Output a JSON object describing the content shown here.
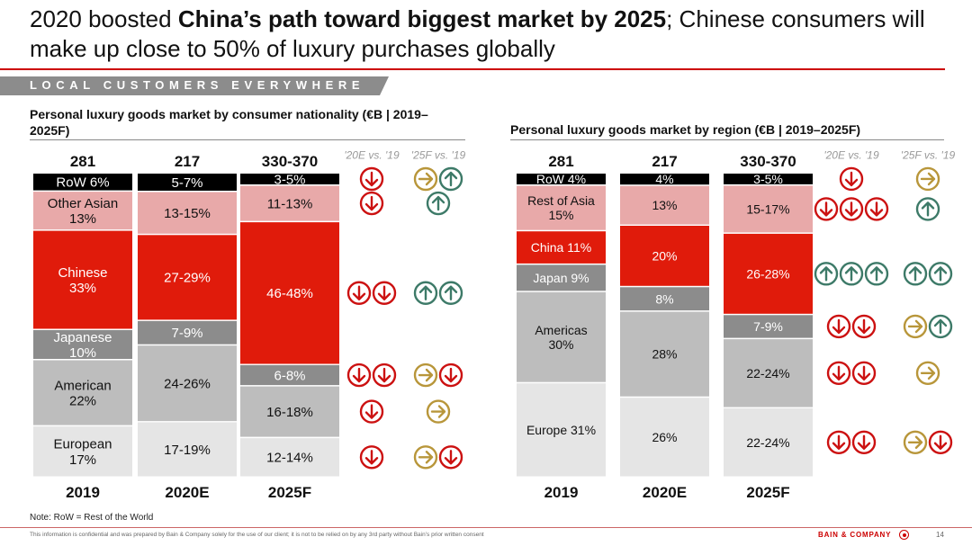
{
  "title": {
    "part1": "2020 boosted ",
    "bold": "China’s path toward biggest market by 2025",
    "part2": "; Chinese consumers will make up close to 50% of luxury purchases globally"
  },
  "banner": "LOCAL CUSTOMERS EVERYWHERE",
  "note": "Note: RoW = Rest of the World",
  "footer": "This information is confidential and was prepared by Bain & Company solely for the use of our client; it is not to be relied on by any 3rd party without Bain’s prior written consent",
  "brand": "BAIN & COMPANY",
  "page_number": "14",
  "colors": {
    "black": "#000000",
    "pink": "#e8a9a9",
    "red": "#e01b0b",
    "darkgrey": "#8c8c8c",
    "grey": "#bdbdbd",
    "lightgrey": "#e5e5e5",
    "down": "#cc1111",
    "right": "#b8963a",
    "up": "#3d7a68",
    "accent_rule": "#cc0000"
  },
  "chart_data": [
    {
      "type": "bar",
      "stacked": true,
      "normalized": true,
      "title": "Personal luxury goods market by consumer nationality (€B | 2019–2025F)",
      "unit": "€B",
      "categories": [
        "2019",
        "2020E",
        "2025F"
      ],
      "totals": [
        "281",
        "217",
        "330-370"
      ],
      "series": [
        {
          "name": "RoW",
          "color": "black",
          "values": [
            6,
            6,
            4
          ],
          "labels": [
            "RoW 6%",
            "5-7%",
            "3-5%"
          ]
        },
        {
          "name": "Other Asian",
          "color": "pink",
          "values": [
            13,
            14,
            12
          ],
          "labels": [
            "Other Asian\n13%",
            "13-15%",
            "11-13%"
          ]
        },
        {
          "name": "Chinese",
          "color": "red",
          "values": [
            33,
            28,
            47
          ],
          "labels": [
            "Chinese\n33%",
            "27-29%",
            "46-48%"
          ]
        },
        {
          "name": "Japanese",
          "color": "darkgrey",
          "values": [
            10,
            8,
            7
          ],
          "labels": [
            "Japanese\n10%",
            "7-9%",
            "6-8%"
          ]
        },
        {
          "name": "American",
          "color": "grey",
          "values": [
            22,
            25,
            17
          ],
          "labels": [
            "American\n22%",
            "24-26%",
            "16-18%"
          ]
        },
        {
          "name": "European",
          "color": "lightgrey",
          "values": [
            17,
            18,
            13
          ],
          "labels": [
            "European\n17%",
            "17-19%",
            "12-14%"
          ]
        }
      ],
      "trend_headers": [
        "'20E vs. '19",
        "'25F vs. '19"
      ],
      "trends": [
        {
          "vs19_20E": [
            "down"
          ],
          "vs19_25F": [
            "right",
            "up"
          ]
        },
        {
          "vs19_20E": [
            "down"
          ],
          "vs19_25F": [
            "up"
          ]
        },
        {
          "vs19_20E": [
            "down",
            "down"
          ],
          "vs19_25F": [
            "up",
            "up"
          ]
        },
        {
          "vs19_20E": [
            "down",
            "down"
          ],
          "vs19_25F": [
            "right",
            "down"
          ]
        },
        {
          "vs19_20E": [
            "down"
          ],
          "vs19_25F": [
            "right"
          ]
        },
        {
          "vs19_20E": [
            "down"
          ],
          "vs19_25F": [
            "right",
            "down"
          ]
        }
      ]
    },
    {
      "type": "bar",
      "stacked": true,
      "normalized": true,
      "title": "Personal luxury goods market by region (€B | 2019–2025F)",
      "unit": "€B",
      "categories": [
        "2019",
        "2020E",
        "2025F"
      ],
      "totals": [
        "281",
        "217",
        "330-370"
      ],
      "series": [
        {
          "name": "RoW",
          "color": "black",
          "values": [
            4,
            4,
            4
          ],
          "labels": [
            "RoW 4%",
            "4%",
            "3-5%"
          ]
        },
        {
          "name": "Rest of Asia",
          "color": "pink",
          "values": [
            15,
            13,
            16
          ],
          "labels": [
            "Rest of Asia\n15%",
            "13%",
            "15-17%"
          ]
        },
        {
          "name": "China",
          "color": "red",
          "values": [
            11,
            20,
            27
          ],
          "labels": [
            "China 11%",
            "20%",
            "26-28%"
          ]
        },
        {
          "name": "Japan",
          "color": "darkgrey",
          "values": [
            9,
            8,
            8
          ],
          "labels": [
            "Japan 9%",
            "8%",
            "7-9%"
          ]
        },
        {
          "name": "Americas",
          "color": "grey",
          "values": [
            30,
            28,
            23
          ],
          "labels": [
            "Americas\n30%",
            "28%",
            "22-24%"
          ]
        },
        {
          "name": "Europe",
          "color": "lightgrey",
          "values": [
            31,
            26,
            23
          ],
          "labels": [
            "Europe 31%",
            "26%",
            "22-24%"
          ]
        }
      ],
      "trend_headers": [
        "'20E vs. '19",
        "'25F vs. '19"
      ],
      "trends": [
        {
          "vs19_20E": [
            "down"
          ],
          "vs19_25F": [
            "right"
          ]
        },
        {
          "vs19_20E": [
            "down",
            "down",
            "down"
          ],
          "vs19_25F": [
            "up"
          ]
        },
        {
          "vs19_20E": [
            "up",
            "up",
            "up"
          ],
          "vs19_25F": [
            "up",
            "up"
          ]
        },
        {
          "vs19_20E": [
            "down",
            "down"
          ],
          "vs19_25F": [
            "right",
            "up"
          ]
        },
        {
          "vs19_20E": [
            "down",
            "down"
          ],
          "vs19_25F": [
            "right"
          ]
        },
        {
          "vs19_20E": [
            "down",
            "down"
          ],
          "vs19_25F": [
            "right",
            "down"
          ]
        }
      ]
    }
  ]
}
